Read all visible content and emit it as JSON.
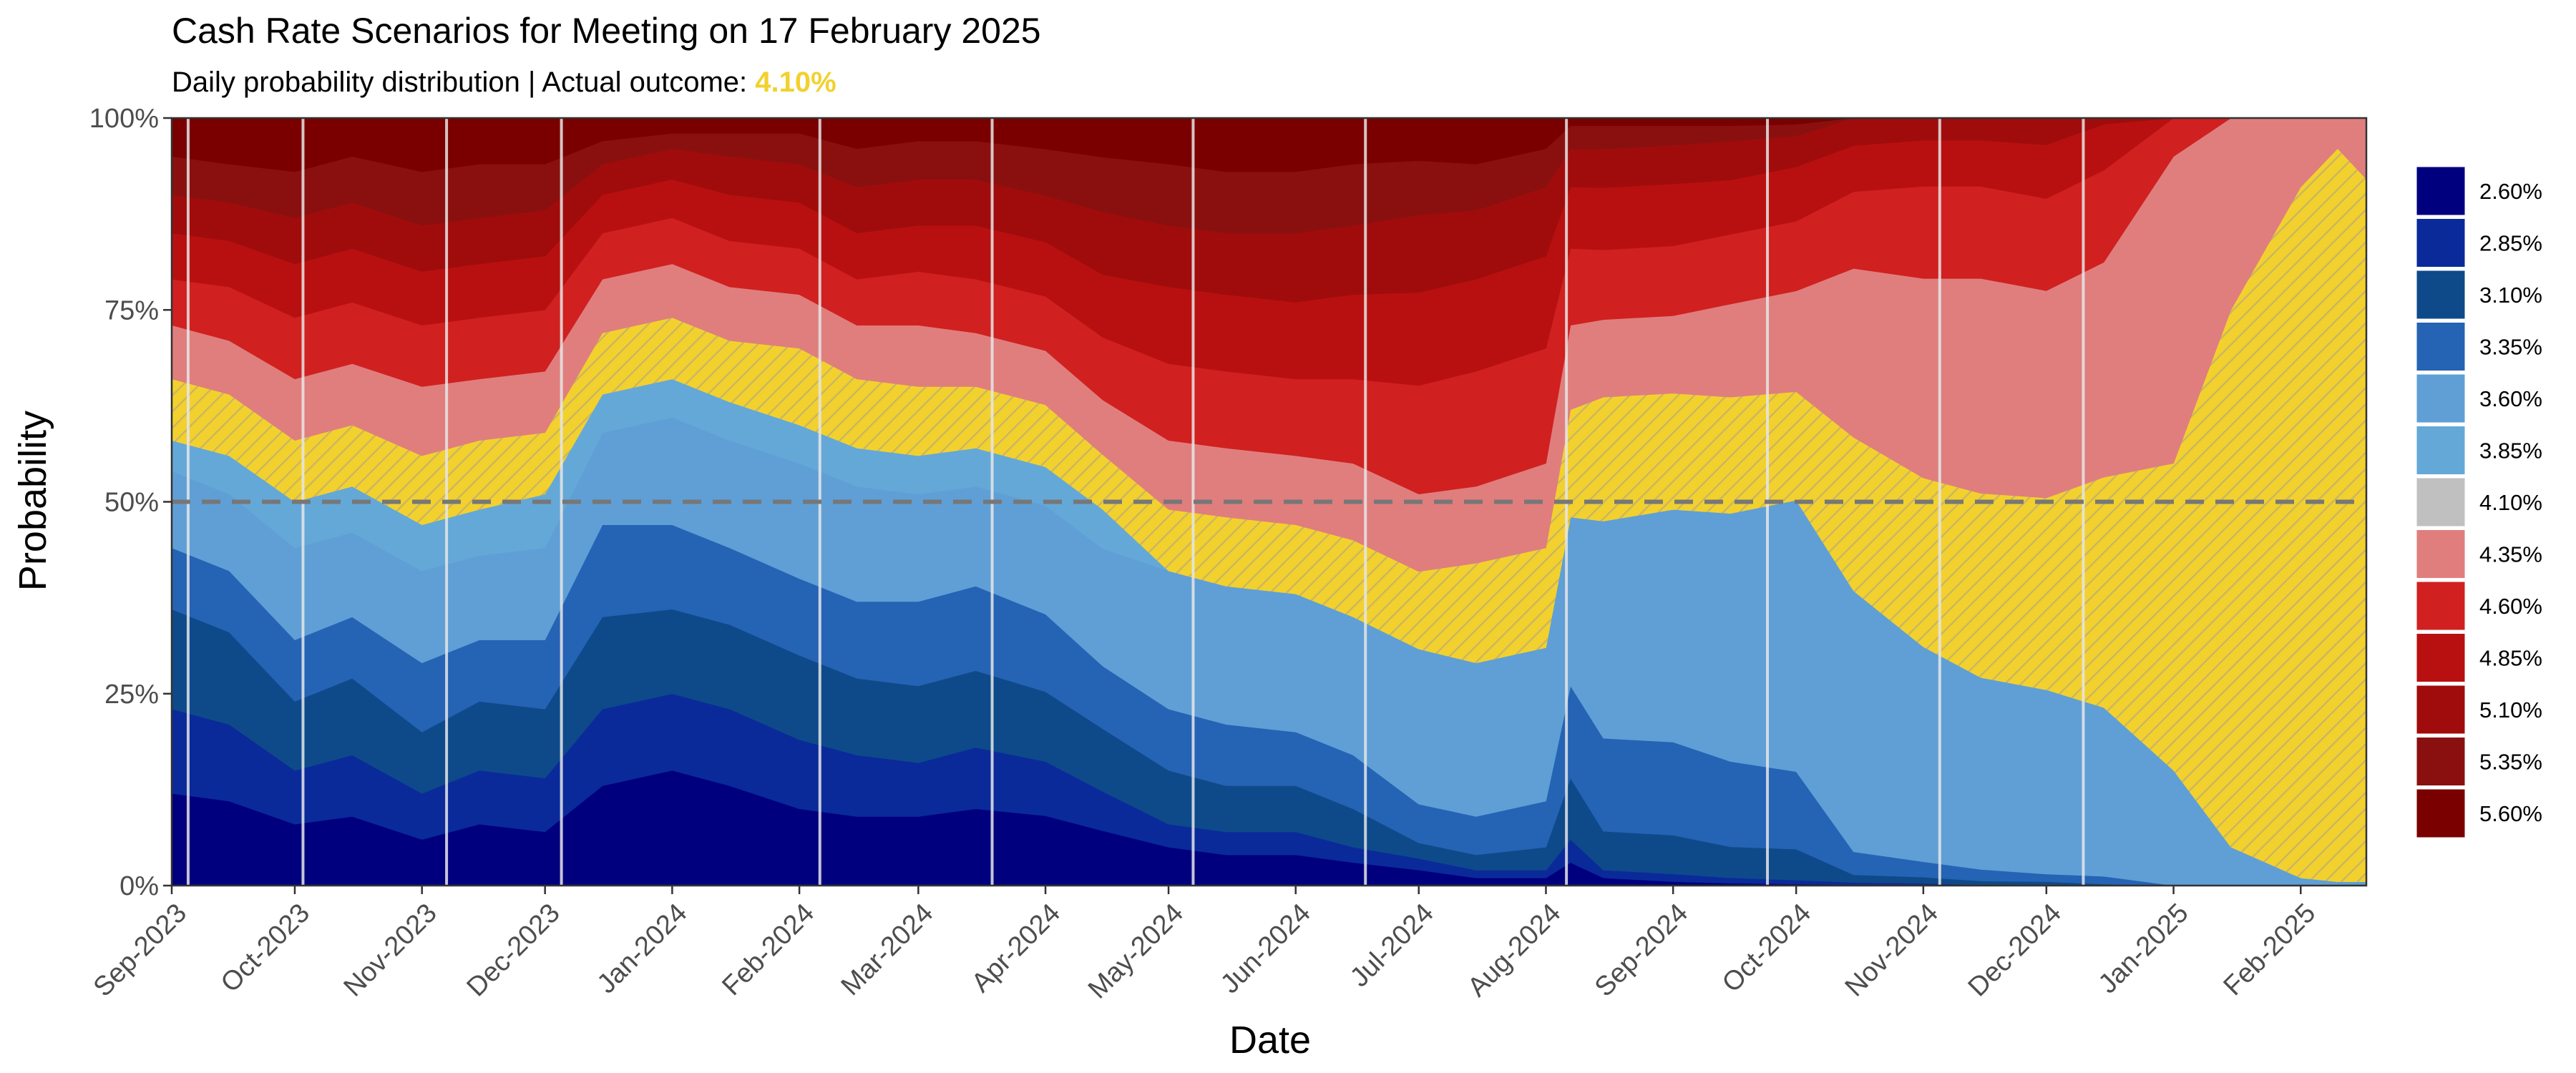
{
  "chart_data": {
    "type": "area",
    "stacked": true,
    "normalized": true,
    "title": "Cash Rate Scenarios for Meeting on 17 February 2025",
    "subtitle_prefix": "Daily probability distribution | Actual outcome:",
    "actual_outcome": "4.10%",
    "xlabel": "Date",
    "ylabel": "Probability",
    "ylim": [
      0,
      100
    ],
    "y_ticks": [
      "0%",
      "25%",
      "50%",
      "75%",
      "100%"
    ],
    "y_tick_values": [
      0,
      25,
      50,
      75,
      100
    ],
    "x_ticks": [
      "Sep-2023",
      "Oct-2023",
      "Nov-2023",
      "Dec-2023",
      "Jan-2024",
      "Feb-2024",
      "Mar-2024",
      "Apr-2024",
      "May-2024",
      "Jun-2024",
      "Jul-2024",
      "Aug-2024",
      "Sep-2024",
      "Oct-2024",
      "Nov-2024",
      "Dec-2024",
      "Jan-2025",
      "Feb-2025"
    ],
    "x_domain": [
      "2023-09-01",
      "2025-02-17"
    ],
    "reference_line": {
      "y": 50,
      "style": "dashed"
    },
    "meeting_lines": [
      "2023-09-05",
      "2023-10-03",
      "2023-11-07",
      "2023-12-05",
      "2024-02-06",
      "2024-03-19",
      "2024-05-07",
      "2024-06-18",
      "2024-08-06",
      "2024-09-24",
      "2024-11-05",
      "2024-12-10"
    ],
    "legend_position": "right",
    "highlight_rate": "4.10%",
    "dates": [
      "2023-09-01",
      "2023-09-15",
      "2023-10-01",
      "2023-10-15",
      "2023-11-01",
      "2023-11-15",
      "2023-12-01",
      "2023-12-15",
      "2024-01-01",
      "2024-01-15",
      "2024-02-01",
      "2024-02-15",
      "2024-03-01",
      "2024-03-15",
      "2024-04-01",
      "2024-04-15",
      "2024-05-01",
      "2024-05-15",
      "2024-06-01",
      "2024-06-15",
      "2024-07-01",
      "2024-07-15",
      "2024-08-01",
      "2024-08-07",
      "2024-08-15",
      "2024-09-01",
      "2024-09-15",
      "2024-10-01",
      "2024-10-15",
      "2024-11-01",
      "2024-11-15",
      "2024-12-01",
      "2024-12-15",
      "2025-01-01",
      "2025-01-15",
      "2025-02-01",
      "2025-02-10",
      "2025-02-17"
    ],
    "series": [
      {
        "name": "2.60%",
        "color": "#00007f",
        "values": [
          12,
          11,
          8,
          9,
          6,
          8,
          7,
          13,
          15,
          13,
          10,
          9,
          9,
          10,
          9,
          7,
          5,
          4,
          4,
          3,
          2,
          1,
          1,
          3,
          1,
          0.5,
          0.3,
          0.2,
          0.1,
          0.1,
          0,
          0,
          0,
          0,
          0,
          0,
          0,
          0
        ]
      },
      {
        "name": "2.85%",
        "color": "#0a2a9a",
        "values": [
          11,
          10,
          7,
          8,
          6,
          7,
          7,
          10,
          10,
          10,
          9,
          8,
          7,
          8,
          7,
          5,
          3,
          3,
          3,
          2,
          1.5,
          1,
          1,
          3,
          1,
          1,
          0.7,
          0.5,
          0.3,
          0.2,
          0.1,
          0.1,
          0,
          0,
          0,
          0,
          0,
          0
        ]
      },
      {
        "name": "3.10%",
        "color": "#0e4a8a",
        "values": [
          13,
          12,
          9,
          10,
          8,
          9,
          9,
          12,
          11,
          11,
          11,
          10,
          10,
          10,
          9,
          8,
          7,
          6,
          6,
          5,
          2,
          2,
          3,
          8,
          5,
          5,
          4,
          4,
          1,
          0.8,
          0.5,
          0.4,
          0.2,
          0,
          0,
          0,
          0,
          0
        ]
      },
      {
        "name": "3.35%",
        "color": "#2563b4",
        "values": [
          8,
          8,
          8,
          8,
          9,
          8,
          9,
          12,
          11,
          10,
          10,
          10,
          11,
          11,
          10,
          8,
          8,
          8,
          7,
          7,
          5,
          5,
          6,
          12,
          12,
          12,
          11,
          10,
          3,
          2,
          1.5,
          1,
          1,
          0,
          0,
          0,
          0,
          0
        ]
      },
      {
        "name": "3.60%",
        "color": "#5f9fd6",
        "values": [
          10,
          10,
          12,
          11,
          12,
          11,
          12,
          12,
          14,
          14,
          15,
          15,
          14,
          13,
          14,
          15,
          18,
          18,
          18,
          18,
          20,
          20,
          20,
          22,
          28,
          30,
          32,
          35,
          34,
          28,
          25,
          24,
          22,
          15,
          5,
          1,
          0.5,
          0.5
        ]
      },
      {
        "name": "3.85%",
        "color": "#64a8d8",
        "values": [
          4,
          5,
          6,
          6,
          6,
          6,
          7,
          5,
          5,
          5,
          5,
          5,
          5,
          5,
          5,
          5,
          0,
          0,
          0,
          0,
          0,
          0,
          0,
          0,
          0,
          0,
          0,
          0,
          0,
          0,
          0,
          0,
          0,
          0,
          0,
          0,
          0,
          0
        ]
      },
      {
        "name": "4.10%",
        "color": "#c0c0c0",
        "pattern": true,
        "values": [
          8,
          8,
          8,
          8,
          9,
          9,
          8,
          8,
          8,
          8,
          10,
          9,
          9,
          8,
          8,
          7,
          8,
          9,
          9,
          10,
          10,
          13,
          13,
          14,
          16,
          15,
          15,
          14,
          20,
          22,
          24,
          25,
          30,
          40,
          70,
          90,
          96,
          92
        ]
      },
      {
        "name": "4.35%",
        "color": "#e07e7e",
        "values": [
          7,
          7,
          8,
          8,
          9,
          8,
          8,
          7,
          7,
          7,
          7,
          7,
          8,
          7,
          7,
          7,
          9,
          9,
          9,
          10,
          10,
          10,
          11,
          11,
          10,
          10,
          12,
          13,
          22,
          26,
          28,
          27,
          28,
          40,
          25,
          9,
          4,
          8
        ]
      },
      {
        "name": "4.60%",
        "color": "#d02020",
        "values": [
          6,
          7,
          8,
          8,
          8,
          8,
          8,
          6,
          6,
          6,
          6,
          6,
          7,
          7,
          7,
          8,
          10,
          10,
          10,
          11,
          14,
          15,
          15,
          10,
          9,
          9,
          9,
          9,
          10,
          12,
          12,
          12,
          12,
          5,
          0,
          0,
          0,
          0
        ]
      },
      {
        "name": "4.85%",
        "color": "#b81010",
        "values": [
          6,
          6,
          7,
          7,
          7,
          7,
          7,
          5,
          5,
          6,
          6,
          6,
          6,
          7,
          7,
          8,
          10,
          10,
          10,
          11,
          12,
          12,
          12,
          8,
          8,
          8,
          7,
          7,
          6,
          6,
          6,
          7,
          6,
          0,
          0,
          0,
          0,
          0
        ]
      },
      {
        "name": "5.10%",
        "color": "#a00c0c",
        "values": [
          5,
          5,
          6,
          6,
          6,
          6,
          6,
          4,
          4,
          5,
          5,
          6,
          6,
          6,
          6,
          8,
          8,
          8,
          9,
          9,
          10,
          9,
          9,
          5,
          5,
          5,
          5,
          4,
          3.6,
          2.9,
          2.9,
          3.5,
          0.8,
          0,
          0,
          0,
          0,
          0
        ]
      },
      {
        "name": "5.35%",
        "color": "#8a1010",
        "values": [
          5,
          5,
          6,
          6,
          7,
          7,
          6,
          3,
          2,
          3,
          4,
          5,
          5,
          5,
          6,
          7,
          8,
          8,
          8,
          8,
          7,
          6,
          5,
          3,
          3,
          2.5,
          2,
          1.5,
          0,
          0,
          0,
          0,
          0,
          0,
          0,
          0,
          0,
          0
        ]
      },
      {
        "name": "5.60%",
        "color": "#7a0000",
        "values": [
          5,
          6,
          7,
          5,
          7,
          6,
          6,
          3,
          2,
          2,
          2,
          4,
          3,
          3,
          4,
          5,
          6,
          7,
          7,
          6,
          5.5,
          6,
          4,
          1,
          1,
          1,
          1,
          0.8,
          0,
          0,
          0,
          0,
          0,
          0,
          0,
          0,
          0,
          0
        ]
      }
    ]
  }
}
